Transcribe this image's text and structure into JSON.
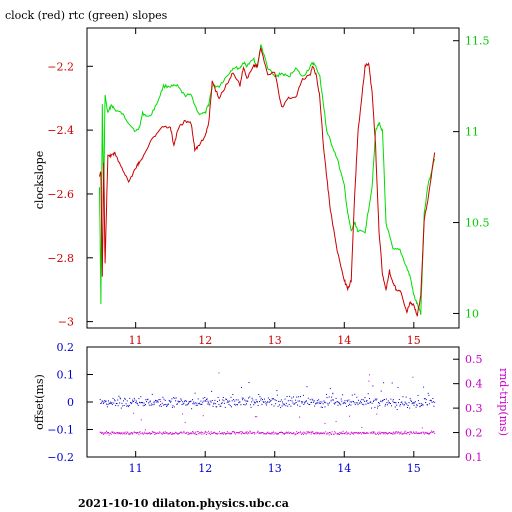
{
  "title": "clock (red) rtc (green) slopes",
  "footer": "2021-10-10  dilaton.physics.ubc.ca",
  "colors": {
    "clock": "#cc0000",
    "rtc": "#00dd00",
    "offset": "#0000cc",
    "rnd_trip": "#cc00cc",
    "rtc_axis": "#00cc00",
    "axis_blue": "#0000cc",
    "axis_red": "#cc0000",
    "axis_magenta": "#cc00cc"
  },
  "chart_data": [
    {
      "type": "line",
      "ylabel": "clockslope",
      "y2label": "",
      "xlim": [
        10.3,
        15.65
      ],
      "ylim": [
        -3.02,
        -2.08
      ],
      "y2lim": [
        9.92,
        11.57
      ],
      "xticks": [
        11,
        12,
        13,
        14,
        15
      ],
      "yticks": [
        -2.2,
        -2.4,
        -2.6,
        -2.8,
        -3
      ],
      "y2ticks": [
        11.5,
        11,
        10.5,
        10
      ],
      "grid": false,
      "series": [
        {
          "name": "clock",
          "axis": "left",
          "x": [
            10.48,
            10.5,
            10.52,
            10.54,
            10.56,
            10.6,
            10.65,
            10.7,
            10.8,
            10.9,
            11.0,
            11.05,
            11.1,
            11.2,
            11.3,
            11.4,
            11.5,
            11.55,
            11.6,
            11.7,
            11.8,
            11.85,
            11.9,
            12.0,
            12.05,
            12.1,
            12.2,
            12.3,
            12.4,
            12.5,
            12.55,
            12.6,
            12.7,
            12.75,
            12.8,
            12.9,
            13.0,
            13.1,
            13.2,
            13.3,
            13.4,
            13.5,
            13.55,
            13.6,
            13.65,
            13.7,
            13.75,
            13.8,
            13.9,
            14.0,
            14.05,
            14.1,
            14.15,
            14.2,
            14.3,
            14.35,
            14.4,
            14.45,
            14.5,
            14.55,
            14.6,
            14.65,
            14.7,
            14.75,
            14.8,
            14.9,
            14.95,
            15.0,
            15.05,
            15.1,
            15.15,
            15.2,
            15.3
          ],
          "y": [
            -2.55,
            -2.53,
            -2.86,
            -2.5,
            -2.82,
            -2.48,
            -2.48,
            -2.47,
            -2.52,
            -2.56,
            -2.52,
            -2.5,
            -2.49,
            -2.44,
            -2.41,
            -2.39,
            -2.39,
            -2.45,
            -2.4,
            -2.37,
            -2.38,
            -2.46,
            -2.45,
            -2.42,
            -2.38,
            -2.25,
            -2.3,
            -2.26,
            -2.22,
            -2.26,
            -2.2,
            -2.24,
            -2.2,
            -2.2,
            -2.14,
            -2.23,
            -2.22,
            -2.33,
            -2.3,
            -2.3,
            -2.24,
            -2.23,
            -2.2,
            -2.23,
            -2.3,
            -2.45,
            -2.55,
            -2.65,
            -2.78,
            -2.87,
            -2.9,
            -2.87,
            -2.6,
            -2.4,
            -2.2,
            -2.19,
            -2.28,
            -2.45,
            -2.72,
            -2.85,
            -2.9,
            -2.84,
            -2.88,
            -2.9,
            -2.9,
            -2.97,
            -2.94,
            -2.95,
            -2.98,
            -2.92,
            -2.68,
            -2.62,
            -2.47
          ]
        },
        {
          "name": "rtc",
          "axis": "right",
          "x": [
            10.48,
            10.5,
            10.52,
            10.54,
            10.56,
            10.6,
            10.65,
            10.7,
            10.8,
            10.9,
            11.0,
            11.05,
            11.1,
            11.2,
            11.3,
            11.4,
            11.5,
            11.6,
            11.7,
            11.8,
            11.9,
            12.0,
            12.05,
            12.1,
            12.2,
            12.3,
            12.4,
            12.5,
            12.55,
            12.6,
            12.7,
            12.75,
            12.8,
            12.9,
            13.0,
            13.1,
            13.2,
            13.3,
            13.4,
            13.5,
            13.55,
            13.6,
            13.65,
            13.7,
            13.75,
            13.8,
            13.9,
            14.0,
            14.05,
            14.1,
            14.15,
            14.2,
            14.3,
            14.4,
            14.45,
            14.5,
            14.55,
            14.6,
            14.7,
            14.8,
            14.9,
            14.95,
            15.0,
            15.05,
            15.1,
            15.15,
            15.2,
            15.3
          ],
          "y": [
            10.7,
            10.05,
            11.15,
            10.65,
            11.2,
            11.1,
            11.15,
            11.12,
            11.1,
            11.05,
            11.0,
            11.02,
            11.1,
            11.08,
            11.15,
            11.25,
            11.25,
            11.25,
            11.2,
            11.2,
            11.1,
            11.1,
            11.15,
            11.25,
            11.25,
            11.3,
            11.35,
            11.35,
            11.38,
            11.36,
            11.4,
            11.35,
            11.48,
            11.35,
            11.3,
            11.32,
            11.3,
            11.35,
            11.3,
            11.35,
            11.38,
            11.35,
            11.3,
            11.15,
            11.0,
            10.95,
            10.85,
            10.7,
            10.55,
            10.45,
            10.5,
            10.45,
            10.45,
            10.7,
            11.0,
            11.05,
            11.0,
            10.5,
            10.35,
            10.35,
            10.25,
            10.2,
            10.1,
            10.05,
            10.0,
            10.55,
            10.7,
            10.85
          ]
        }
      ]
    },
    {
      "type": "scatter",
      "ylabel": "offset(ms)",
      "y2label": "rnd-trip(ms)",
      "xlim": [
        10.3,
        15.65
      ],
      "ylim": [
        -0.2,
        0.2
      ],
      "y2lim": [
        0.1,
        0.55
      ],
      "xticks": [
        11,
        12,
        13,
        14,
        15
      ],
      "yticks": [
        0.2,
        0.1,
        0,
        -0.1,
        -0.2
      ],
      "y2ticks": [
        0.5,
        0.4,
        0.3,
        0.2,
        0.1
      ],
      "grid": false,
      "series": [
        {
          "name": "offset",
          "axis": "left",
          "center": 0.0,
          "spread": 0.012
        },
        {
          "name": "rnd-trip",
          "axis": "right",
          "center": 0.2,
          "spread": 0.006
        }
      ]
    }
  ]
}
